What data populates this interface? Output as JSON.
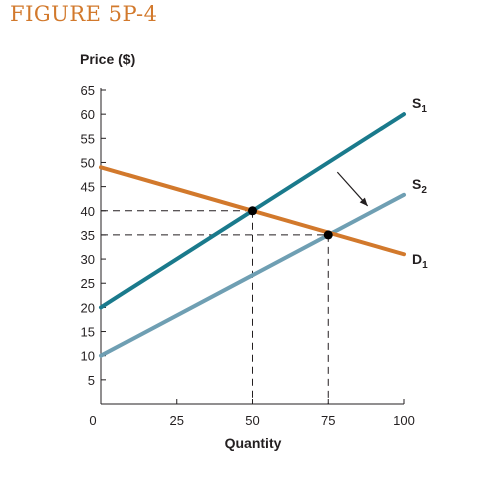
{
  "figure_title": "FIGURE 5P-4",
  "colors": {
    "title": "#d2792c",
    "S1": "#1a7a8c",
    "S2": "#6f9fb3",
    "D1": "#d2792c",
    "axis": "#231f20"
  },
  "chart_data": {
    "type": "line",
    "ylabel": "Price ($)",
    "xlabel": "Quantity",
    "xlim": [
      0,
      100
    ],
    "ylim": [
      0,
      65
    ],
    "x_ticks": [
      0,
      25,
      50,
      75,
      100
    ],
    "y_ticks": [
      5,
      10,
      15,
      20,
      25,
      30,
      35,
      40,
      45,
      50,
      55,
      60,
      65
    ],
    "series": [
      {
        "id": "S1",
        "name": "S",
        "subscript": "1",
        "x": [
          0,
          100
        ],
        "y": [
          20,
          60
        ],
        "color": "#1a7a8c"
      },
      {
        "id": "S2",
        "name": "S",
        "subscript": "2",
        "x": [
          0,
          100
        ],
        "y": [
          10,
          43.3
        ],
        "color": "#6f9fb3"
      },
      {
        "id": "D1",
        "name": "D",
        "subscript": "1",
        "x": [
          0,
          100
        ],
        "y": [
          49,
          31
        ],
        "color": "#d2792c"
      }
    ],
    "equilibria": [
      {
        "x": 50,
        "y": 40
      },
      {
        "x": 75,
        "y": 35
      }
    ],
    "shift_arrow": {
      "from": [
        78,
        48
      ],
      "to": [
        88,
        41
      ]
    }
  }
}
